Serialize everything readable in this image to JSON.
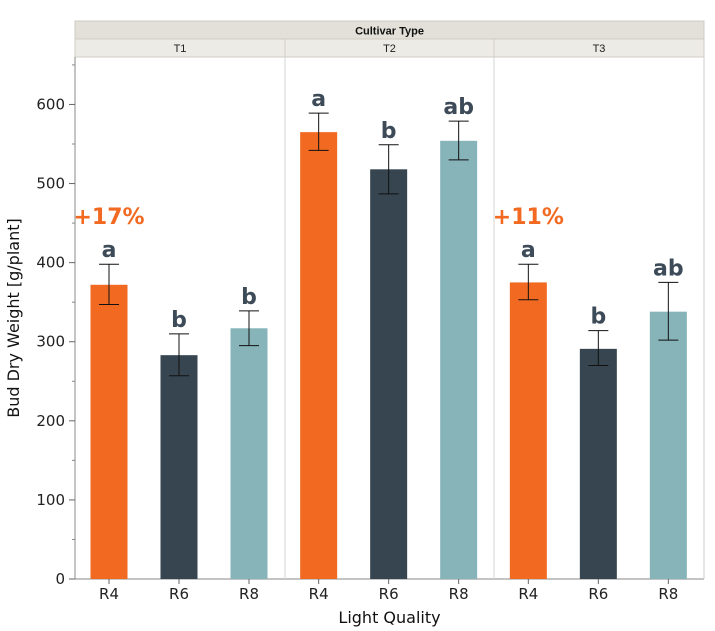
{
  "chart_data": {
    "type": "bar",
    "strip_title": "Cultivar Type",
    "panels": [
      "T1",
      "T2",
      "T3"
    ],
    "categories": [
      "R4",
      "R6",
      "R8"
    ],
    "xlabel": "Light Quality",
    "ylabel": "Bud Dry Weight [g/plant]",
    "ylim": [
      0,
      660
    ],
    "yticks": [
      0,
      100,
      200,
      300,
      400,
      500,
      600
    ],
    "colors": {
      "R4": "#f26a21",
      "R6": "#36454f",
      "R8": "#86b4b9"
    },
    "values": {
      "T1": [
        372,
        283,
        317
      ],
      "T2": [
        565,
        518,
        554
      ],
      "T3": [
        375,
        291,
        338
      ]
    },
    "errors": {
      "T1": [
        [
          347,
          398
        ],
        [
          257,
          310
        ],
        [
          295,
          339
        ]
      ],
      "T2": [
        [
          542,
          589
        ],
        [
          487,
          549
        ],
        [
          530,
          579
        ]
      ],
      "T3": [
        [
          353,
          398
        ],
        [
          270,
          314
        ],
        [
          302,
          375
        ]
      ]
    },
    "significance": {
      "T1": [
        "a",
        "b",
        "b"
      ],
      "T2": [
        "a",
        "b",
        "ab"
      ],
      "T3": [
        "a",
        "b",
        "ab"
      ]
    },
    "annotations": {
      "T1": "+17%",
      "T2": "",
      "T3": "+11%"
    },
    "grid": false
  }
}
